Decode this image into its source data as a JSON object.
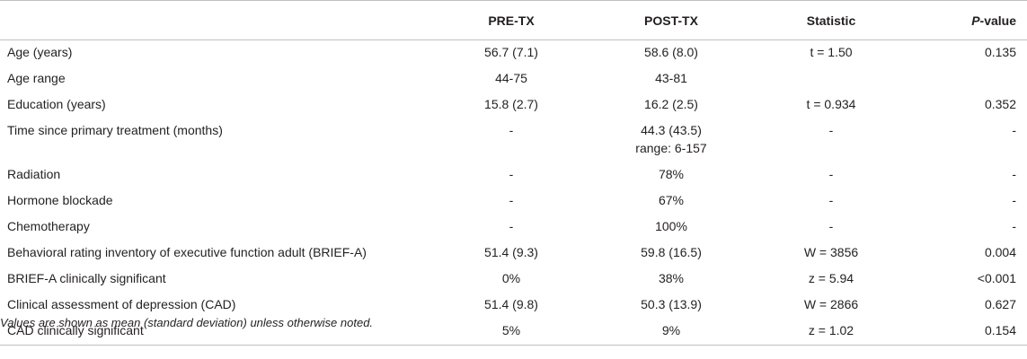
{
  "header": {
    "col0": "",
    "col1": "PRE-TX",
    "col2": "POST-TX",
    "col3": "Statistic",
    "col4_italic": "P",
    "col4_rest": "-value"
  },
  "rows": [
    {
      "label": "Age (years)",
      "pre": "56.7 (7.1)",
      "post": "58.6 (8.0)",
      "post2": "",
      "stat": "t = 1.50",
      "p": "0.135"
    },
    {
      "label": "Age range",
      "pre": "44-75",
      "post": "43-81",
      "post2": "",
      "stat": "",
      "p": ""
    },
    {
      "label": "Education (years)",
      "pre": "15.8 (2.7)",
      "post": "16.2 (2.5)",
      "post2": "",
      "stat": "t = 0.934",
      "p": "0.352"
    },
    {
      "label": "Time since primary treatment (months)",
      "pre": "-",
      "post": "44.3 (43.5)",
      "post2": "range: 6-157",
      "stat": "-",
      "p": "-"
    },
    {
      "label": "Radiation",
      "pre": "-",
      "post": "78%",
      "post2": "",
      "stat": "-",
      "p": "-"
    },
    {
      "label": "Hormone blockade",
      "pre": "-",
      "post": "67%",
      "post2": "",
      "stat": "-",
      "p": "-"
    },
    {
      "label": "Chemotherapy",
      "pre": "-",
      "post": "100%",
      "post2": "",
      "stat": "-",
      "p": "-"
    },
    {
      "label": "Behavioral rating inventory of executive function adult (BRIEF-A)",
      "pre": "51.4 (9.3)",
      "post": "59.8 (16.5)",
      "post2": "",
      "stat": "W = 3856",
      "p": "0.004"
    },
    {
      "label": "BRIEF-A clinically significant",
      "pre": "0%",
      "post": "38%",
      "post2": "",
      "stat": "z = 5.94",
      "p": "<0.001"
    },
    {
      "label": "Clinical assessment of depression (CAD)",
      "pre": "51.4 (9.8)",
      "post": "50.3 (13.9)",
      "post2": "",
      "stat": "W = 2866",
      "p": "0.627"
    },
    {
      "label": "CAD clinically significant",
      "pre": "5%",
      "post": "9%",
      "post2": "",
      "stat": "z = 1.02",
      "p": "0.154"
    }
  ],
  "footnote": "Values are shown as mean (standard deviation) unless otherwise noted."
}
